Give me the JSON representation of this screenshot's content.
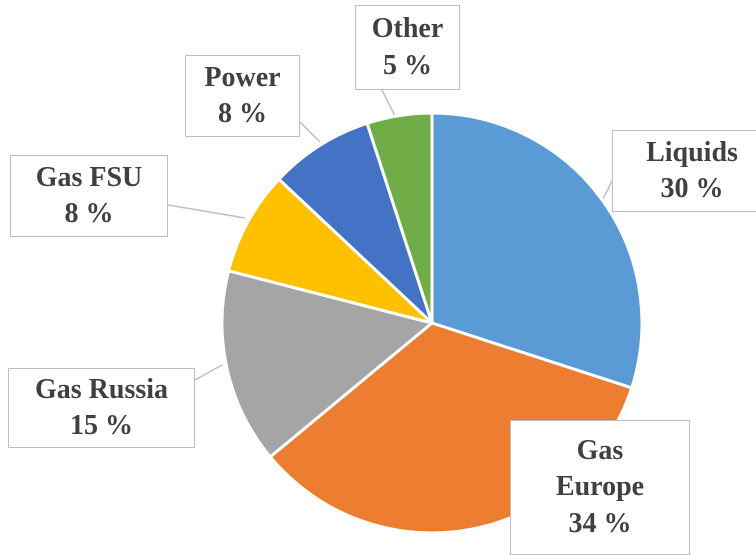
{
  "chart_data": {
    "type": "pie",
    "categories": [
      "Liquids",
      "Gas Europe",
      "Gas Russia",
      "Gas FSU",
      "Power",
      "Other"
    ],
    "values": [
      30,
      34,
      15,
      8,
      8,
      5
    ],
    "value_labels": [
      "30 %",
      "34 %",
      "15 %",
      "8 %",
      "8 %",
      "5 %"
    ],
    "colors": [
      "#5b9bd5",
      "#ed7d31",
      "#a5a5a5",
      "#ffc000",
      "#4472c4",
      "#70ad47"
    ]
  }
}
